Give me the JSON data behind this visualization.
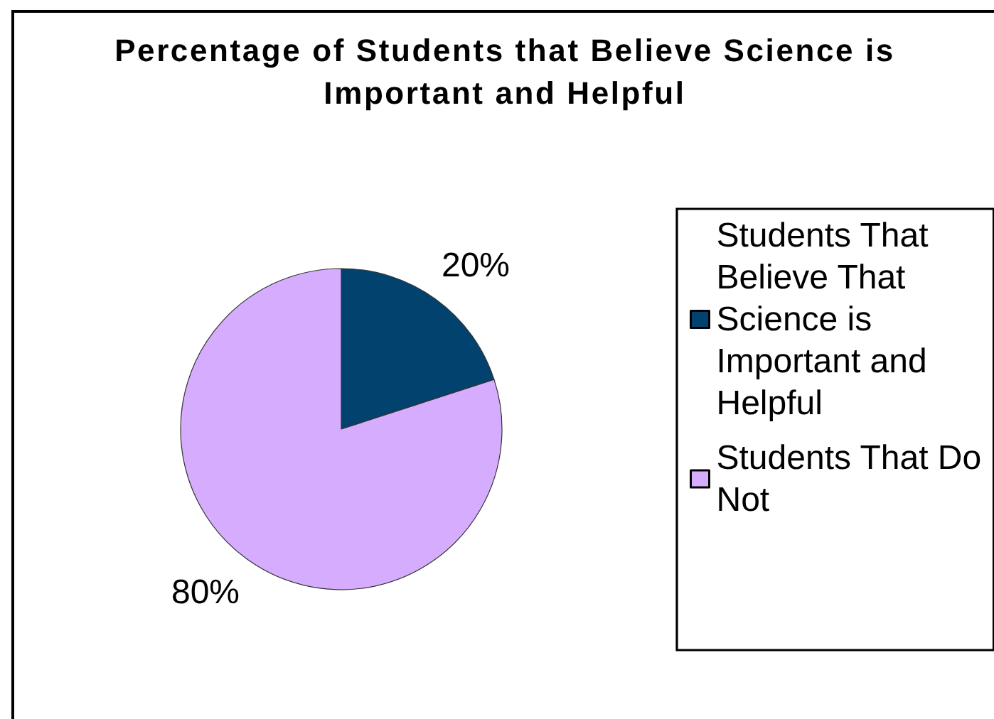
{
  "chart_data": {
    "type": "pie",
    "title": "Percentage of Students that Believe Science is Important and Helpful",
    "categories": [
      "Students That Believe That Science is Important and Helpful",
      "Students That Do Not"
    ],
    "values": [
      20,
      80
    ],
    "colors": [
      "#02426f",
      "#d6adfe"
    ],
    "value_labels": [
      "20%",
      "80%"
    ],
    "legend": "right"
  }
}
